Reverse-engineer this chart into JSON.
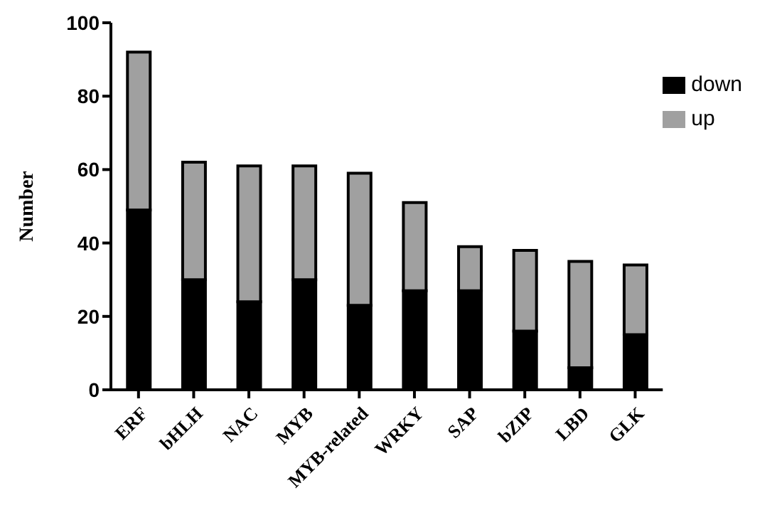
{
  "chart_data": {
    "type": "bar",
    "ylabel": "Number",
    "categories": [
      "ERF",
      "bHLH",
      "NAC",
      "MYB",
      "MYB-related",
      "WRKY",
      "SAP",
      "bZIP",
      "LBD",
      "GLK"
    ],
    "series": [
      {
        "name": "down",
        "color": "#000000",
        "values": [
          49,
          30,
          24,
          30,
          23,
          27,
          27,
          16,
          6,
          15
        ]
      },
      {
        "name": "up",
        "color": "#a0a0a0",
        "values": [
          43,
          32,
          37,
          31,
          36,
          24,
          12,
          22,
          29,
          19
        ]
      }
    ],
    "stacked": true,
    "ylim": [
      0,
      100
    ],
    "yticks": [
      0,
      20,
      40,
      60,
      80,
      100
    ],
    "grid": false,
    "legend": "top right"
  }
}
